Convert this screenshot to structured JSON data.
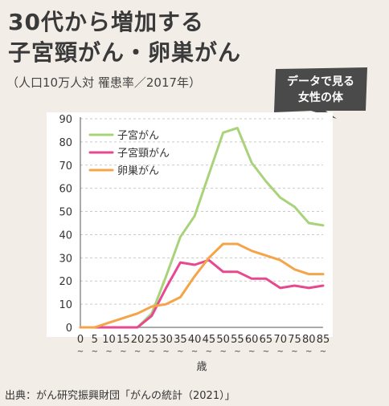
{
  "header": {
    "title_line1": "30代から増加する",
    "title_line2": "子宮頸がん・卵巣がん",
    "subtitle": "（人口10万人対 罹患率／2017年）"
  },
  "badge": {
    "line1": "データで見る",
    "line2": "女性の体"
  },
  "source": "出典：がん研究振興財団「がんの統計（2021）」",
  "chart_data": {
    "type": "line",
    "xlabel": "歳",
    "ylabel": "",
    "x": [
      "0",
      "5",
      "10",
      "15",
      "20",
      "25",
      "30",
      "35",
      "40",
      "45",
      "50",
      "55",
      "60",
      "65",
      "70",
      "75",
      "80",
      "85"
    ],
    "ylim": [
      0,
      90
    ],
    "yticks": [
      0,
      10,
      20,
      30,
      40,
      50,
      60,
      70,
      80,
      90
    ],
    "grid": true,
    "legend": "top-left",
    "series": [
      {
        "name": "子宮がん",
        "color": "#a8d37a",
        "values": [
          0,
          0,
          0,
          0,
          0,
          6,
          22,
          39,
          48,
          66,
          84,
          86,
          71,
          63,
          56,
          52,
          45,
          44
        ]
      },
      {
        "name": "子宮頸がん",
        "color": "#e6498f",
        "values": [
          0,
          0,
          0,
          0,
          0,
          5,
          17,
          28,
          27,
          29,
          24,
          24,
          21,
          21,
          17,
          18,
          17,
          18
        ]
      },
      {
        "name": "卵巣がん",
        "color": "#f5a449",
        "values": [
          0,
          0,
          2,
          4,
          6,
          9,
          10,
          13,
          22,
          30,
          36,
          36,
          33,
          31,
          29,
          25,
          23,
          23
        ]
      }
    ]
  }
}
